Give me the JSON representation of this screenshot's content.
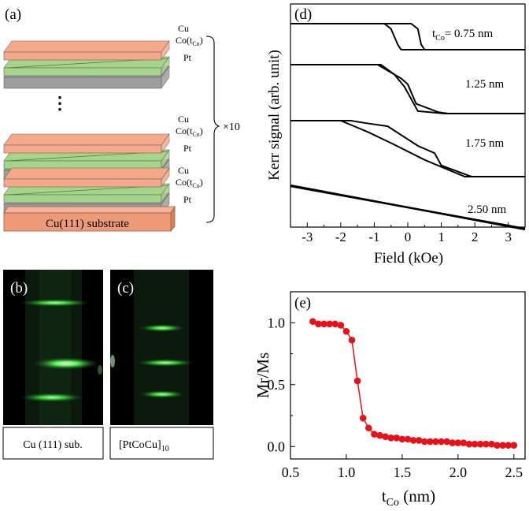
{
  "panel_a": {
    "label": "(a)",
    "layer_labels": [
      "Cu",
      "Co(t",
      "Co",
      ")",
      "Pt"
    ],
    "repeat_label": "×10",
    "ellipsis": "⋮",
    "substrate": "Cu(111) substrate",
    "colors": {
      "cu": "#f6a98a",
      "co": "#a6d48a",
      "pt": "#9e9e9e",
      "substrate": "#ee9977"
    }
  },
  "panel_b": {
    "label": "(b)",
    "caption": "Cu (111) sub."
  },
  "panel_c": {
    "label": "(c)",
    "caption_main": "[PtCoCu]",
    "caption_sub": "10"
  },
  "panel_d": {
    "label": "(d)",
    "ylabel": "Kerr signal (arb. unit)",
    "xlabel": "Field (kOe)",
    "curve_labels": {
      "t_prefix": "t",
      "t_sub": "Co",
      "first": "= 0.75 nm",
      "c2": "1.25 nm",
      "c3": "1.75 nm",
      "c4": "2.50 nm"
    }
  },
  "chart_data": [
    {
      "type": "line",
      "title": "(d)",
      "xlabel": "Field (kOe)",
      "ylabel": "Kerr signal (arb. unit)",
      "xlim": [
        -3.5,
        3.5
      ],
      "xticks": [
        -3,
        -2,
        -1,
        0,
        1,
        2,
        3
      ],
      "series": [
        {
          "name": "0.75 nm",
          "offset": 0,
          "loops": [
            {
              "x": [
                -3.5,
                0.1,
                0.3,
                0.4,
                0.5,
                3.5
              ],
              "y": [
                1,
                1,
                0.8,
                0.2,
                0,
                0
              ]
            },
            {
              "x": [
                -3.5,
                -0.7,
                -0.5,
                -0.3,
                -0.2,
                3.5
              ],
              "y": [
                1,
                1,
                0.8,
                0.2,
                0,
                0
              ]
            }
          ]
        },
        {
          "name": "1.25 nm",
          "offset": 1,
          "loops": [
            {
              "x": [
                -3.5,
                -0.8,
                -0.4,
                -0.1,
                0.1,
                0.3,
                1.1,
                3.5
              ],
              "y": [
                1,
                1,
                0.8,
                0.55,
                0.3,
                0.05,
                0,
                0
              ]
            },
            {
              "x": [
                -3.5,
                -0.9,
                -0.2,
                0.0,
                0.25,
                0.9,
                1.2,
                3.5
              ],
              "y": [
                1,
                1,
                0.72,
                0.6,
                0.2,
                0.03,
                0,
                0
              ]
            }
          ]
        },
        {
          "name": "1.75 nm",
          "offset": 2,
          "loops": [
            {
              "x": [
                -3.5,
                -1.7,
                -1.3,
                -0.6,
                0.3,
                0.8,
                1.0,
                1.9,
                3.5
              ],
              "y": [
                1,
                1,
                0.96,
                0.9,
                0.55,
                0.42,
                0.2,
                0,
                0
              ]
            },
            {
              "x": [
                -3.5,
                -2.0,
                -1.2,
                -0.5,
                0.5,
                1.3,
                1.7,
                3.5
              ],
              "y": [
                1,
                1,
                0.8,
                0.6,
                0.3,
                0.1,
                0,
                0
              ]
            }
          ]
        },
        {
          "name": "2.50 nm",
          "offset": 3,
          "loops": [
            {
              "x": [
                -3.5,
                3.5
              ],
              "y": [
                1,
                0
              ]
            },
            {
              "x": [
                -3.5,
                3.5
              ],
              "y": [
                0.98,
                0.02
              ]
            }
          ]
        }
      ]
    },
    {
      "type": "scatter",
      "title": "(e)",
      "xlabel_main": "t",
      "xlabel_sub": "Co",
      "xlabel_unit": " (nm)",
      "ylabel": "Mr/Ms",
      "xlim": [
        0.5,
        2.6
      ],
      "ylim": [
        -0.1,
        1.25
      ],
      "xticks": [
        "0.5",
        "1.0",
        "1.5",
        "2.0",
        "2.5"
      ],
      "yticks": [
        "0.0",
        "0.5",
        "1.0"
      ],
      "color": "#e8111a",
      "x": [
        0.7,
        0.75,
        0.8,
        0.85,
        0.9,
        0.95,
        1.0,
        1.05,
        1.1,
        1.15,
        1.2,
        1.25,
        1.3,
        1.35,
        1.4,
        1.45,
        1.5,
        1.55,
        1.6,
        1.65,
        1.7,
        1.75,
        1.8,
        1.85,
        1.9,
        1.95,
        2.0,
        2.05,
        2.1,
        2.15,
        2.2,
        2.25,
        2.3,
        2.35,
        2.4,
        2.45,
        2.5
      ],
      "y": [
        1.01,
        0.99,
        0.99,
        0.99,
        0.99,
        0.98,
        0.93,
        0.86,
        0.53,
        0.23,
        0.15,
        0.1,
        0.09,
        0.08,
        0.07,
        0.07,
        0.06,
        0.06,
        0.05,
        0.05,
        0.04,
        0.04,
        0.04,
        0.04,
        0.04,
        0.03,
        0.03,
        0.03,
        0.02,
        0.02,
        0.02,
        0.02,
        0.02,
        0.01,
        0.01,
        0.01,
        0.01
      ]
    }
  ]
}
